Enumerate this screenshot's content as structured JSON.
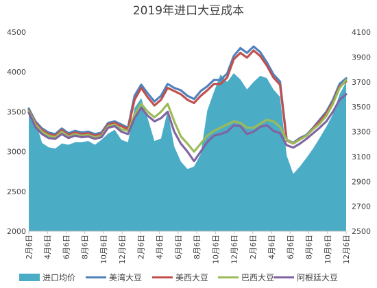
{
  "chart_data": {
    "type": "area+line",
    "title": "2019年进口大豆成本",
    "grid": false,
    "legend_position": "bottom",
    "y_left": {
      "min": 2000,
      "max": 4500,
      "ticks": [
        2000,
        2500,
        3000,
        3500,
        4000,
        4500
      ]
    },
    "y_right": {
      "min": 2500,
      "max": 4100,
      "ticks": [
        2500,
        2700,
        2900,
        3100,
        3300,
        3500,
        3700,
        3900,
        4100
      ]
    },
    "x_tick_labels": [
      "2月6日",
      "4月6日",
      "6月6日",
      "8月6日",
      "10月6日",
      "12月6日",
      "2月6日",
      "4月6日",
      "6月6日",
      "8月6日",
      "10月6日",
      "12月6日",
      "2月6日",
      "4月6日",
      "6月6日",
      "8月6日",
      "10月6日",
      "12月6日"
    ],
    "series": [
      {
        "name": "进口均价",
        "type": "area",
        "axis": "right",
        "color": "#4BACC6",
        "values": [
          3480,
          3390,
          3210,
          3175,
          3165,
          3205,
          3195,
          3215,
          3215,
          3225,
          3195,
          3235,
          3285,
          3315,
          3235,
          3215,
          3490,
          3570,
          3405,
          3225,
          3245,
          3470,
          3180,
          3060,
          3000,
          3020,
          3120,
          3470,
          3620,
          3760,
          3700,
          3770,
          3720,
          3640,
          3700,
          3750,
          3730,
          3640,
          3580,
          3110,
          2960,
          3020,
          3090,
          3165,
          3250,
          3340,
          3440,
          3600,
          3700
        ]
      },
      {
        "name": "美湾大豆",
        "type": "line",
        "axis": "left",
        "color": "#4F81BD",
        "values": [
          3540,
          3380,
          3290,
          3240,
          3220,
          3290,
          3230,
          3260,
          3240,
          3250,
          3220,
          3240,
          3360,
          3380,
          3340,
          3300,
          3700,
          3840,
          3730,
          3630,
          3700,
          3850,
          3800,
          3770,
          3700,
          3660,
          3760,
          3820,
          3900,
          3900,
          3980,
          4200,
          4300,
          4240,
          4320,
          4250,
          4120,
          3970,
          3880,
          3150,
          3110,
          3170,
          3210,
          3300,
          3400,
          3500,
          3650,
          3850,
          3920
        ]
      },
      {
        "name": "美西大豆",
        "type": "line",
        "axis": "left",
        "color": "#C0504D",
        "values": [
          3520,
          3360,
          3270,
          3220,
          3200,
          3270,
          3210,
          3240,
          3220,
          3230,
          3200,
          3220,
          3340,
          3360,
          3320,
          3280,
          3650,
          3800,
          3680,
          3580,
          3650,
          3800,
          3760,
          3720,
          3650,
          3610,
          3700,
          3770,
          3850,
          3850,
          3930,
          4160,
          4240,
          4180,
          4270,
          4200,
          4080,
          3930,
          3840,
          3140,
          3100,
          3160,
          3200,
          3290,
          3380,
          3480,
          3620,
          3820,
          3880
        ]
      },
      {
        "name": "巴西大豆",
        "type": "line",
        "axis": "left",
        "color": "#9BBB59",
        "values": [
          3510,
          3340,
          3250,
          3200,
          3180,
          3250,
          3190,
          3220,
          3200,
          3210,
          3180,
          3200,
          3320,
          3340,
          3280,
          3260,
          3460,
          3600,
          3500,
          3430,
          3500,
          3600,
          3380,
          3190,
          3100,
          3000,
          3100,
          3200,
          3260,
          3300,
          3340,
          3380,
          3360,
          3300,
          3300,
          3350,
          3400,
          3380,
          3310,
          3150,
          3100,
          3150,
          3200,
          3280,
          3350,
          3450,
          3600,
          3800,
          3900
        ]
      },
      {
        "name": "阿根廷大豆",
        "type": "line",
        "axis": "left",
        "color": "#8064A2",
        "values": [
          3490,
          3310,
          3220,
          3170,
          3160,
          3220,
          3170,
          3200,
          3180,
          3190,
          3160,
          3180,
          3300,
          3320,
          3250,
          3220,
          3420,
          3550,
          3450,
          3380,
          3420,
          3500,
          3250,
          3100,
          3000,
          2880,
          3000,
          3120,
          3200,
          3220,
          3250,
          3330,
          3320,
          3220,
          3250,
          3310,
          3330,
          3260,
          3230,
          3080,
          3050,
          3100,
          3160,
          3230,
          3300,
          3380,
          3500,
          3650,
          3720
        ]
      }
    ]
  }
}
